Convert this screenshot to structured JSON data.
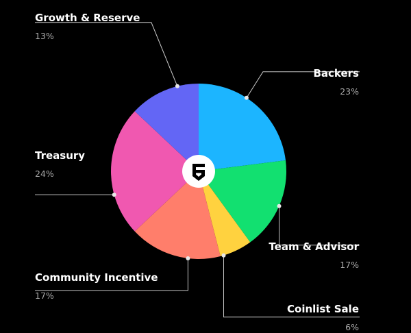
{
  "chart_data": {
    "type": "pie",
    "slices": [
      {
        "name": "Backers",
        "value": 23,
        "label": "23%",
        "color": "#1cb5ff"
      },
      {
        "name": "Team & Advisor",
        "value": 17,
        "label": "17%",
        "color": "#12e070"
      },
      {
        "name": "Coinlist Sale",
        "value": 6,
        "label": "6%",
        "color": "#ffd23f"
      },
      {
        "name": "Community Incentive",
        "value": 17,
        "label": "17%",
        "color": "#ff7e6b"
      },
      {
        "name": "Treasury",
        "value": 24,
        "label": "24%",
        "color": "#f058b0"
      },
      {
        "name": "Growth & Reserve",
        "value": 13,
        "label": "13%",
        "color": "#6366f5"
      }
    ],
    "legend": "callout-labels"
  },
  "logo": {
    "icon": "s-shield-logo-icon"
  }
}
